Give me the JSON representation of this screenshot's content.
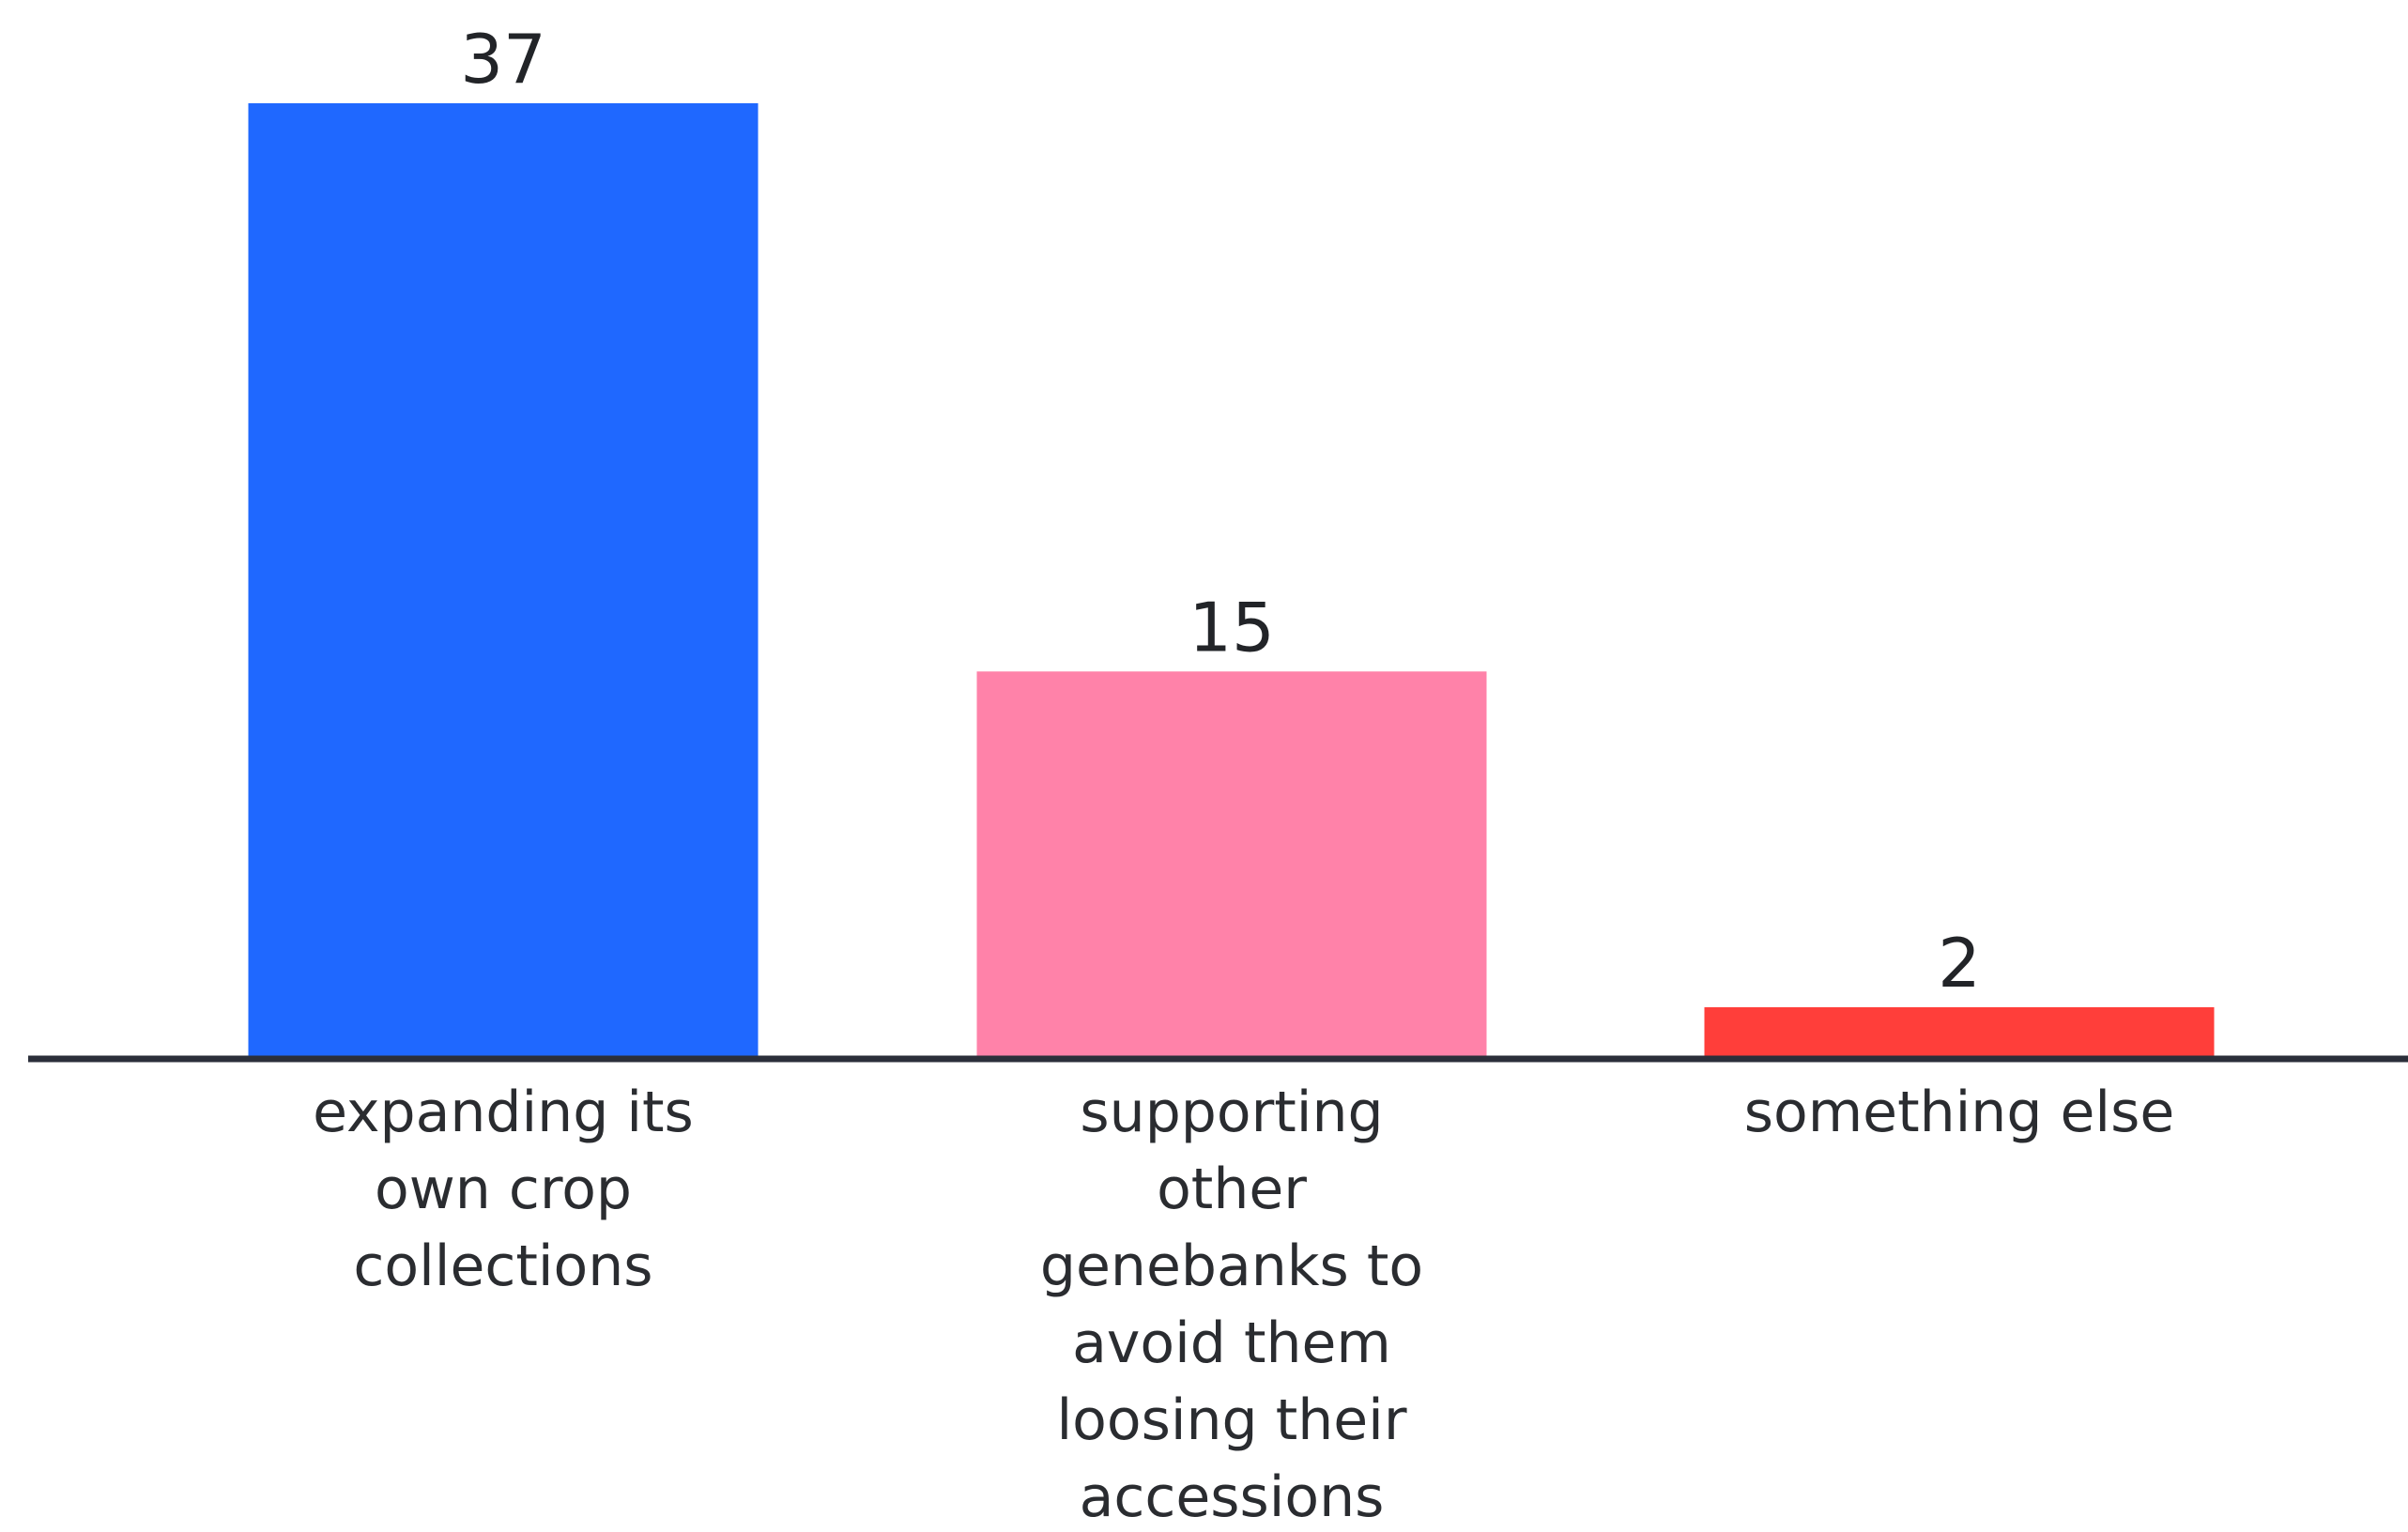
{
  "chart_data": {
    "type": "bar",
    "categories": [
      [
        "expanding its",
        "own crop",
        "collections"
      ],
      [
        "supporting",
        "other",
        "genebanks to",
        "avoid them",
        "loosing their",
        "accessions"
      ],
      [
        "something else"
      ]
    ],
    "values": [
      37,
      15,
      2
    ],
    "value_labels": [
      "37",
      "15",
      "2"
    ],
    "colors": [
      "#1f68ff",
      "#ff82a9",
      "#ff3e3a"
    ],
    "axis_color": "#2b2f3a",
    "ylim": [
      0,
      37
    ],
    "grid": false,
    "legend": "none"
  }
}
